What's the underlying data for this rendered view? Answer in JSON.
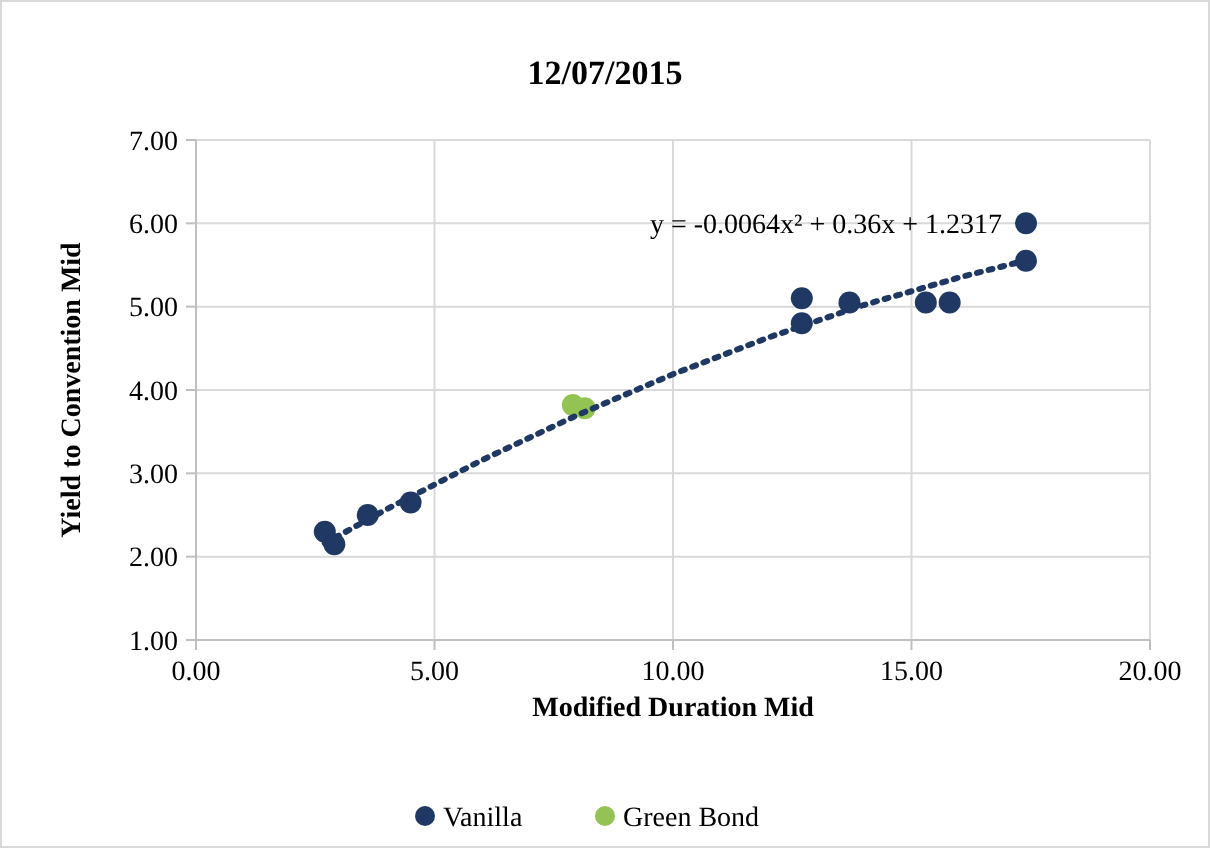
{
  "chart_data": {
    "type": "scatter",
    "title": "12/07/2015",
    "xlabel": "Modified Duration Mid",
    "ylabel": "Yield to Convention Mid",
    "xlim": [
      0,
      20
    ],
    "xticks": [
      {
        "value": 0,
        "label": "0.00"
      },
      {
        "value": 5,
        "label": "5.00"
      },
      {
        "value": 10,
        "label": "10.00"
      },
      {
        "value": 15,
        "label": "15.00"
      },
      {
        "value": 20,
        "label": "20.00"
      }
    ],
    "ylim": [
      1,
      7
    ],
    "yticks": [
      {
        "value": 1,
        "label": "1.00"
      },
      {
        "value": 2,
        "label": "2.00"
      },
      {
        "value": 3,
        "label": "3.00"
      },
      {
        "value": 4,
        "label": "4.00"
      },
      {
        "value": 5,
        "label": "5.00"
      },
      {
        "value": 6,
        "label": "6.00"
      },
      {
        "value": 7,
        "label": "7.00"
      }
    ],
    "grid": true,
    "legend": "bottom",
    "marker": "circle",
    "annotations": [
      {
        "text": "y = -0.0064x² + 0.36x + 1.2317",
        "x": 17.4,
        "y": 6.0
      }
    ],
    "series": [
      {
        "name": "Vanilla",
        "color": "#203864",
        "x": [
          2.7,
          2.9,
          3.6,
          4.5,
          12.7,
          12.7,
          13.7,
          15.3,
          15.8,
          17.4,
          17.4
        ],
        "values": [
          2.3,
          2.15,
          2.5,
          2.65,
          5.1,
          4.8,
          5.05,
          5.05,
          5.05,
          6.0,
          5.55
        ]
      },
      {
        "name": "Green Bond",
        "color": "#92c353",
        "x": [
          7.9,
          8.15
        ],
        "values": [
          3.82,
          3.78
        ]
      },
      {
        "type": "line",
        "line_style": "dotted",
        "marker": "none",
        "color": "#203864",
        "x": [
          2.7,
          4,
          6,
          8,
          10,
          12,
          14,
          16,
          17.5
        ],
        "values": [
          2.16,
          2.57,
          3.16,
          3.7,
          4.19,
          4.63,
          5.02,
          5.35,
          5.57
        ]
      }
    ]
  }
}
